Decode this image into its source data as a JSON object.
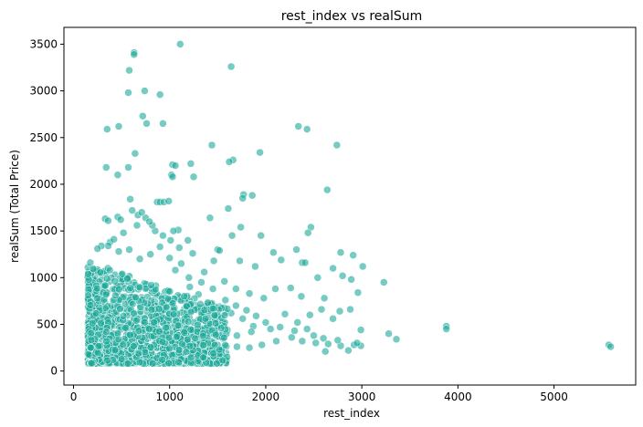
{
  "chart_data": {
    "type": "scatter",
    "title": "rest_index vs realSum",
    "xlabel": "rest_index",
    "ylabel": "realSum (Total Price)",
    "xlim": [
      -100,
      5850
    ],
    "ylim": [
      -150,
      3680
    ],
    "xticks": [
      0,
      1000,
      2000,
      3000,
      4000,
      5000
    ],
    "yticks": [
      0,
      500,
      1000,
      1500,
      2000,
      2500,
      3000,
      3500
    ],
    "grid": false,
    "legend": "none",
    "point_color": "#1aa89a",
    "points": [
      [
        1110,
        3500
      ],
      [
        630,
        3410
      ],
      [
        630,
        3390
      ],
      [
        580,
        3220
      ],
      [
        1640,
        3260
      ],
      [
        740,
        3000
      ],
      [
        570,
        2980
      ],
      [
        900,
        2960
      ],
      [
        720,
        2730
      ],
      [
        760,
        2650
      ],
      [
        930,
        2650
      ],
      [
        470,
        2620
      ],
      [
        350,
        2590
      ],
      [
        2340,
        2620
      ],
      [
        2430,
        2590
      ],
      [
        2740,
        2420
      ],
      [
        1440,
        2420
      ],
      [
        640,
        2330
      ],
      [
        1940,
        2340
      ],
      [
        1660,
        2260
      ],
      [
        1030,
        2210
      ],
      [
        1060,
        2200
      ],
      [
        1220,
        2220
      ],
      [
        570,
        2180
      ],
      [
        340,
        2180
      ],
      [
        1620,
        2240
      ],
      [
        1020,
        2100
      ],
      [
        1250,
        2080
      ],
      [
        460,
        2100
      ],
      [
        1030,
        2080
      ],
      [
        1770,
        1890
      ],
      [
        1760,
        1850
      ],
      [
        2640,
        1940
      ],
      [
        1860,
        1880
      ],
      [
        590,
        1840
      ],
      [
        870,
        1810
      ],
      [
        900,
        1810
      ],
      [
        940,
        1810
      ],
      [
        990,
        1820
      ],
      [
        610,
        1720
      ],
      [
        1610,
        1740
      ],
      [
        670,
        1670
      ],
      [
        750,
        1640
      ],
      [
        1420,
        1640
      ],
      [
        460,
        1650
      ],
      [
        490,
        1620
      ],
      [
        330,
        1630
      ],
      [
        360,
        1610
      ],
      [
        1650,
        1450
      ],
      [
        1740,
        1540
      ],
      [
        1950,
        1450
      ],
      [
        2470,
        1540
      ],
      [
        2440,
        1480
      ],
      [
        1090,
        1510
      ],
      [
        1040,
        1500
      ],
      [
        1190,
        1400
      ],
      [
        380,
        1380
      ],
      [
        360,
        1340
      ],
      [
        290,
        1340
      ],
      [
        1500,
        1300
      ],
      [
        1520,
        1290
      ],
      [
        2080,
        1270
      ],
      [
        2320,
        1300
      ],
      [
        2780,
        1270
      ],
      [
        2910,
        1240
      ],
      [
        3010,
        1120
      ],
      [
        2700,
        1100
      ],
      [
        2380,
        1160
      ],
      [
        2410,
        1160
      ],
      [
        2160,
        1190
      ],
      [
        1890,
        1120
      ],
      [
        1730,
        1180
      ],
      [
        2540,
        1000
      ],
      [
        2800,
        1020
      ],
      [
        2960,
        840
      ],
      [
        2890,
        980
      ],
      [
        3230,
        950
      ],
      [
        2610,
        780
      ],
      [
        2370,
        800
      ],
      [
        2260,
        890
      ],
      [
        2100,
        880
      ],
      [
        1980,
        780
      ],
      [
        1830,
        830
      ],
      [
        1690,
        880
      ],
      [
        1570,
        960
      ],
      [
        2200,
        610
      ],
      [
        2460,
        600
      ],
      [
        2580,
        660
      ],
      [
        2770,
        640
      ],
      [
        2700,
        560
      ],
      [
        2880,
        660
      ],
      [
        2990,
        440
      ],
      [
        3280,
        400
      ],
      [
        3360,
        340
      ],
      [
        3880,
        480
      ],
      [
        3880,
        450
      ],
      [
        5570,
        280
      ],
      [
        5590,
        260
      ],
      [
        2920,
        280
      ],
      [
        2990,
        270
      ],
      [
        2780,
        270
      ],
      [
        2650,
        290
      ],
      [
        2520,
        300
      ],
      [
        2380,
        320
      ],
      [
        2270,
        360
      ],
      [
        2110,
        320
      ],
      [
        1960,
        280
      ],
      [
        1830,
        250
      ],
      [
        1700,
        260
      ],
      [
        1550,
        250
      ],
      [
        1420,
        240
      ],
      [
        1300,
        260
      ],
      [
        2860,
        220
      ],
      [
        2620,
        210
      ],
      [
        2430,
        450
      ],
      [
        2330,
        520
      ],
      [
        2050,
        450
      ],
      [
        1870,
        480
      ],
      [
        1760,
        560
      ],
      [
        1640,
        620
      ],
      [
        1520,
        690
      ],
      [
        1400,
        720
      ],
      [
        1300,
        820
      ],
      [
        1210,
        900
      ],
      [
        1360,
        1060
      ],
      [
        1460,
        1180
      ],
      [
        1240,
        1260
      ],
      [
        1100,
        1320
      ],
      [
        1010,
        1400
      ],
      [
        930,
        1450
      ],
      [
        850,
        1500
      ],
      [
        820,
        1560
      ],
      [
        790,
        1600
      ],
      [
        710,
        1700
      ],
      [
        660,
        1560
      ],
      [
        520,
        1480
      ],
      [
        420,
        1410
      ],
      [
        250,
        1310
      ],
      [
        470,
        1280
      ],
      [
        580,
        1300
      ],
      [
        690,
        1200
      ],
      [
        800,
        1250
      ],
      [
        900,
        1330
      ],
      [
        1000,
        1210
      ],
      [
        1120,
        1150
      ],
      [
        1060,
        1080
      ],
      [
        1200,
        1000
      ],
      [
        1330,
        950
      ],
      [
        1450,
        880
      ],
      [
        1580,
        760
      ],
      [
        1690,
        700
      ],
      [
        1800,
        650
      ],
      [
        1900,
        590
      ],
      [
        2000,
        520
      ],
      [
        2150,
        470
      ],
      [
        2300,
        430
      ],
      [
        2500,
        380
      ],
      [
        2600,
        350
      ],
      [
        2750,
        330
      ],
      [
        2950,
        300
      ],
      [
        1850,
        420
      ],
      [
        1700,
        380
      ],
      [
        1600,
        440
      ],
      [
        1500,
        400
      ],
      [
        1400,
        460
      ],
      [
        1350,
        360
      ],
      [
        1250,
        420
      ],
      [
        1180,
        340
      ]
    ]
  }
}
